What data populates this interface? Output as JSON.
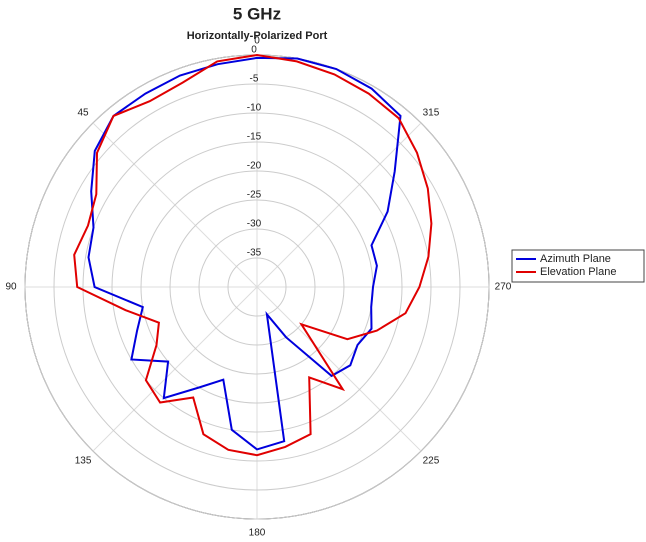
{
  "chart_data": {
    "type": "polar",
    "title": "5 GHz",
    "subtitle": "Horizontally-Polarized Port",
    "theta": [
      0,
      10,
      20,
      30,
      40,
      50,
      60,
      70,
      80,
      90,
      100,
      110,
      120,
      130,
      140,
      150,
      160,
      170,
      180,
      190,
      200,
      210,
      220,
      230,
      240,
      250,
      260,
      270,
      280,
      290,
      300,
      310,
      320,
      330,
      340,
      350
    ],
    "series": [
      {
        "name": "Azimuth Plane",
        "color": "#0000dd",
        "values": [
          -0.5,
          -1,
          -1.2,
          -1.5,
          -1.5,
          -3.5,
          -7,
          -10,
          -10.5,
          -12,
          -20,
          -18,
          -15,
          -20,
          -15,
          -20,
          -23,
          -15,
          -12,
          -13,
          -35,
          -30,
          -20,
          -19,
          -20,
          -19,
          -20,
          -20,
          -19,
          -19,
          -14,
          -9,
          -1.5,
          -0.5,
          0,
          0
        ]
      },
      {
        "name": "Elevation Plane",
        "color": "#e00000",
        "values": [
          0,
          -0.5,
          -2.5,
          -3,
          -1.5,
          -4,
          -8,
          -9,
          -8,
          -9,
          -17,
          -22,
          -20,
          -15,
          -14,
          -18,
          -13,
          -11.5,
          -11,
          -12,
          -13,
          -22,
          -17,
          -30,
          -22,
          -18,
          -14,
          -12,
          -10,
          -8,
          -6,
          -4,
          -2,
          -1.5,
          -1,
          -0.5
        ]
      }
    ],
    "rlim": [
      -40,
      0
    ],
    "rticks": [
      0,
      -5,
      -10,
      -15,
      -20,
      -25,
      -30,
      -35
    ],
    "thetaticks": [
      0,
      45,
      90,
      135,
      180,
      225,
      270,
      315
    ],
    "direction": "counterclockwise",
    "zero": "top",
    "grid": true,
    "legend": "right"
  }
}
